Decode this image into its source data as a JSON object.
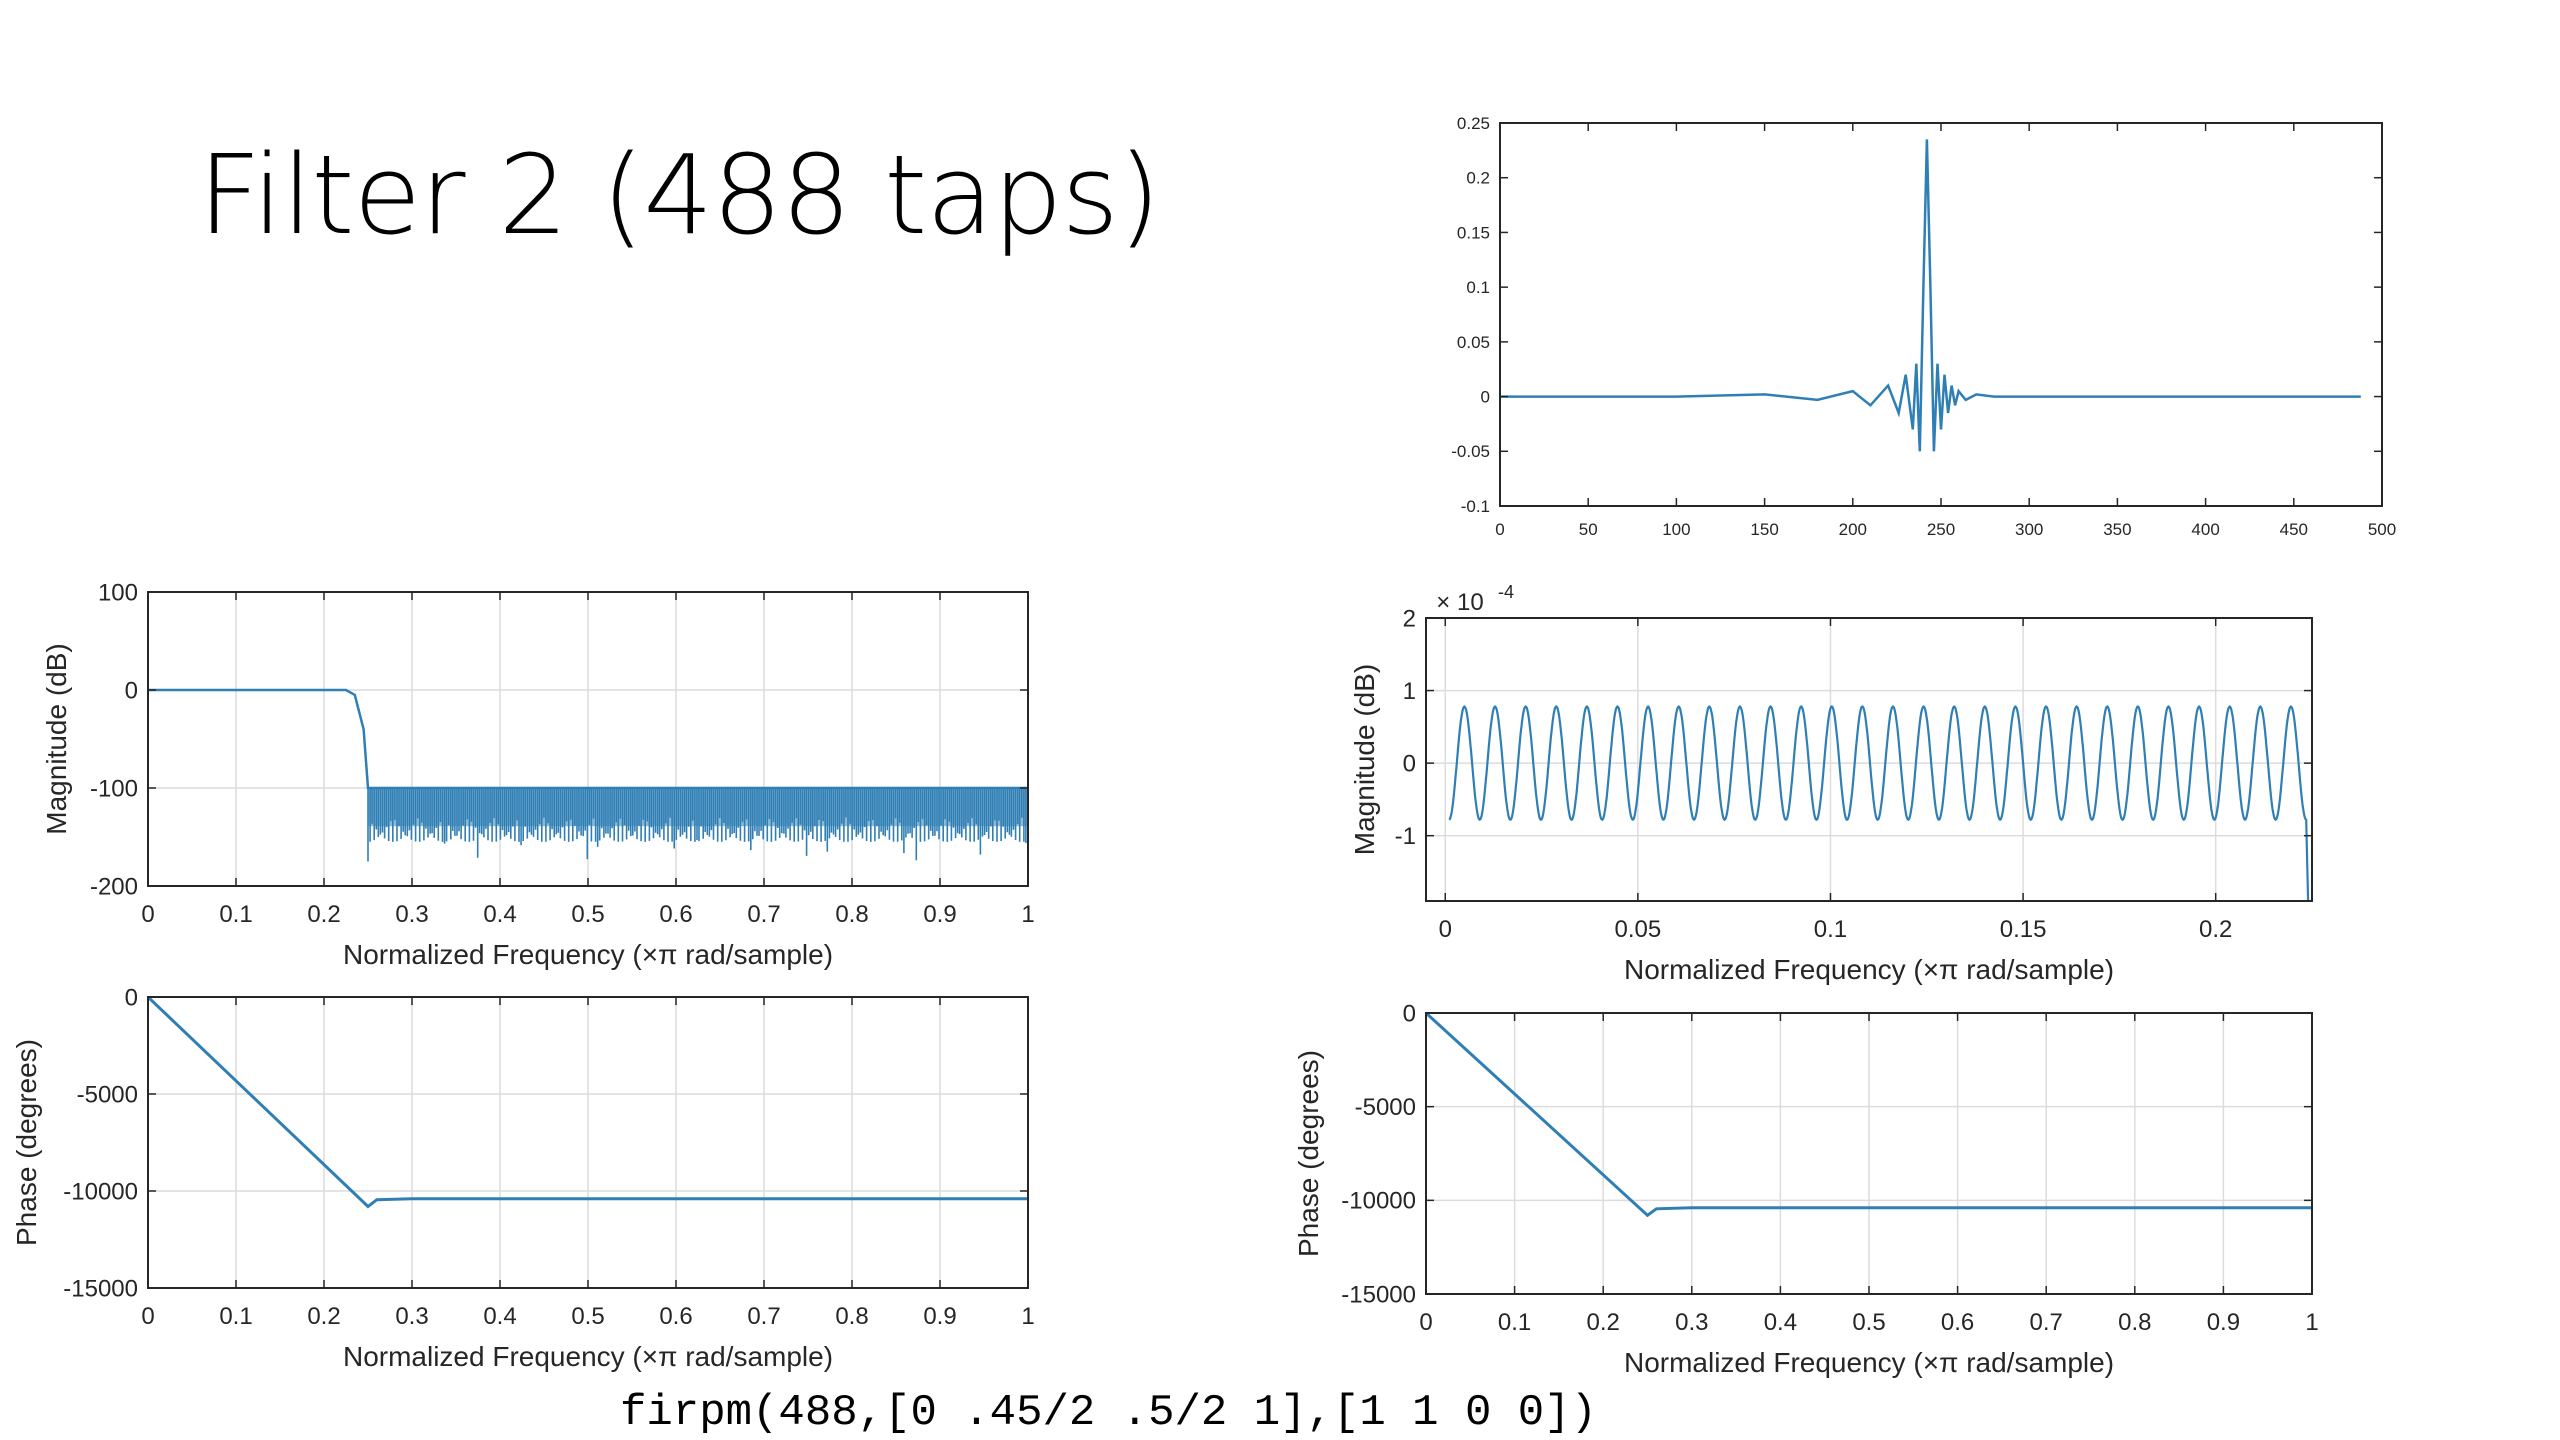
{
  "slide": {
    "title": "Filter 2 (488 taps)",
    "code": "firpm(488,[0 .45/2 .5/2 1],[1 1 0 0])"
  },
  "chart_data": [
    {
      "id": "impulse",
      "type": "line",
      "title": "",
      "xlabel": "",
      "ylabel": "",
      "xlim": [
        0,
        500
      ],
      "ylim": [
        -0.1,
        0.25
      ],
      "xticks": [
        "0",
        "50",
        "100",
        "150",
        "200",
        "250",
        "300",
        "350",
        "400",
        "450",
        "500"
      ],
      "yticks": [
        "-0.1",
        "-0.05",
        "0",
        "0.05",
        "0.1",
        "0.15",
        "0.2",
        "0.25"
      ],
      "grid": false,
      "color": "#2f7fb5",
      "series": [
        {
          "x": [
            0,
            100,
            150,
            180,
            200,
            210,
            220,
            226,
            230,
            234,
            236,
            238,
            240,
            242,
            244,
            246,
            248,
            250,
            252,
            254,
            256,
            258,
            260,
            264,
            270,
            280,
            300,
            350,
            400,
            488
          ],
          "values": [
            0,
            0,
            0.002,
            -0.003,
            0.005,
            -0.008,
            0.01,
            -0.015,
            0.02,
            -0.03,
            0.03,
            -0.05,
            0.1,
            0.235,
            0.1,
            -0.05,
            0.03,
            -0.03,
            0.02,
            -0.015,
            0.01,
            -0.008,
            0.005,
            -0.003,
            0.002,
            0,
            0,
            0,
            0,
            0
          ]
        }
      ]
    },
    {
      "id": "mag-full",
      "type": "line",
      "xlabel": "Normalized Frequency  (×π rad/sample)",
      "ylabel": "Magnitude (dB)",
      "xlim": [
        0,
        1
      ],
      "ylim": [
        -200,
        100
      ],
      "xticks": [
        "0",
        "0.1",
        "0.2",
        "0.3",
        "0.4",
        "0.5",
        "0.6",
        "0.7",
        "0.8",
        "0.9",
        "1"
      ],
      "yticks": [
        "-200",
        "-100",
        "0",
        "100"
      ],
      "grid": true,
      "color": "#2f7fb5",
      "series": [
        {
          "x": [
            0,
            0.225,
            0.235,
            0.245,
            0.25,
            0.255,
            0.3,
            0.35,
            0.4,
            0.45,
            0.5,
            0.55,
            0.6,
            0.65,
            0.7,
            0.75,
            0.8,
            0.85,
            0.9,
            0.95,
            1
          ],
          "values": [
            0,
            0,
            -5,
            -40,
            -100,
            -100,
            -100,
            -100,
            -100,
            -100,
            -100,
            -100,
            -100,
            -100,
            -100,
            -100,
            -100,
            -100,
            -100,
            -100,
            -100
          ],
          "stopband_floor_min": -190
        }
      ]
    },
    {
      "id": "phase-full",
      "type": "line",
      "xlabel": "Normalized Frequency  (×π rad/sample)",
      "ylabel": "Phase (degrees)",
      "xlim": [
        0,
        1
      ],
      "ylim": [
        -15000,
        0
      ],
      "xticks": [
        "0",
        "0.1",
        "0.2",
        "0.3",
        "0.4",
        "0.5",
        "0.6",
        "0.7",
        "0.8",
        "0.9",
        "1"
      ],
      "yticks": [
        "-15000",
        "-10000",
        "-5000",
        "0"
      ],
      "grid": true,
      "color": "#2f7fb5",
      "series": [
        {
          "x": [
            0,
            0.25,
            0.26,
            0.3,
            0.5,
            0.7,
            1
          ],
          "values": [
            0,
            -10800,
            -10450,
            -10400,
            -10400,
            -10400,
            -10400
          ]
        }
      ]
    },
    {
      "id": "mag-passband",
      "type": "line",
      "xlabel": "Normalized Frequency  (×π rad/sample)",
      "ylabel": "Magnitude (dB)",
      "exponent_label": "× 10",
      "exponent": "-4",
      "xlim": [
        -0.005,
        0.225
      ],
      "ylim": [
        -1.9,
        2
      ],
      "xticks": [
        [
          "0",
          0
        ],
        [
          "0.05",
          0.05
        ],
        [
          "0.1",
          0.1
        ],
        [
          "0.15",
          0.15
        ],
        [
          "0.2",
          0.2
        ]
      ],
      "yticks": [
        [
          "-1",
          -1
        ],
        [
          "0",
          0
        ],
        [
          "1",
          1
        ],
        [
          "2",
          2
        ]
      ],
      "grid": true,
      "color": "#2f7fb5",
      "series": [
        {
          "ripple_amplitude": 0.78,
          "ripple_cycles": 28,
          "x_start": 0.001,
          "x_end": 0.2235
        }
      ]
    },
    {
      "id": "phase-zoom",
      "type": "line",
      "xlabel": "Normalized Frequency  (×π rad/sample)",
      "ylabel": "Phase (degrees)",
      "xlim": [
        0,
        1
      ],
      "ylim": [
        -15000,
        0
      ],
      "xticks": [
        "0",
        "0.1",
        "0.2",
        "0.3",
        "0.4",
        "0.5",
        "0.6",
        "0.7",
        "0.8",
        "0.9",
        "1"
      ],
      "yticks": [
        "-15000",
        "-10000",
        "-5000",
        "0"
      ],
      "grid": true,
      "color": "#2f7fb5",
      "series": [
        {
          "x": [
            0,
            0.25,
            0.26,
            0.3,
            0.5,
            0.7,
            1
          ],
          "values": [
            0,
            -10800,
            -10450,
            -10400,
            -10400,
            -10400,
            -10400
          ]
        }
      ]
    }
  ]
}
